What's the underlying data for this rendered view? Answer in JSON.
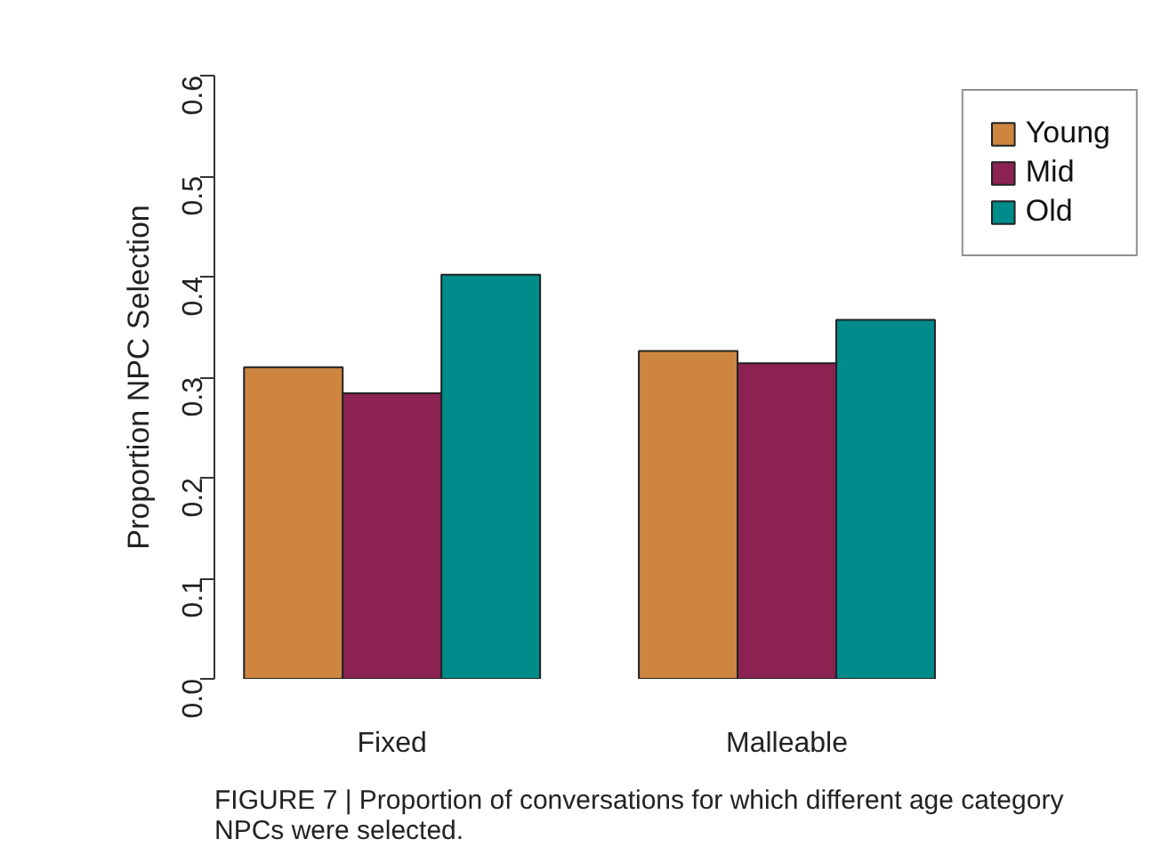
{
  "chart_data": {
    "type": "bar",
    "ylabel": "Proportion NPC Selection",
    "categories": [
      "Fixed",
      "Malleable"
    ],
    "series": [
      {
        "name": "Young",
        "color": "#cd853f",
        "values": [
          0.31,
          0.326
        ]
      },
      {
        "name": "Mid",
        "color": "#8b2252",
        "values": [
          0.284,
          0.314
        ]
      },
      {
        "name": "Old",
        "color": "#008b8b",
        "values": [
          0.402,
          0.357
        ]
      }
    ],
    "ylim": [
      0,
      0.6
    ],
    "yticks": [
      {
        "value": 0,
        "label": "0.0"
      },
      0.1,
      0.2,
      0.3,
      0.4,
      0.5,
      0.6
    ],
    "legend": "top right",
    "annotations": [
      "FIGURE 7 | Proportion of conversations for which different age category NPCs were selected."
    ]
  }
}
